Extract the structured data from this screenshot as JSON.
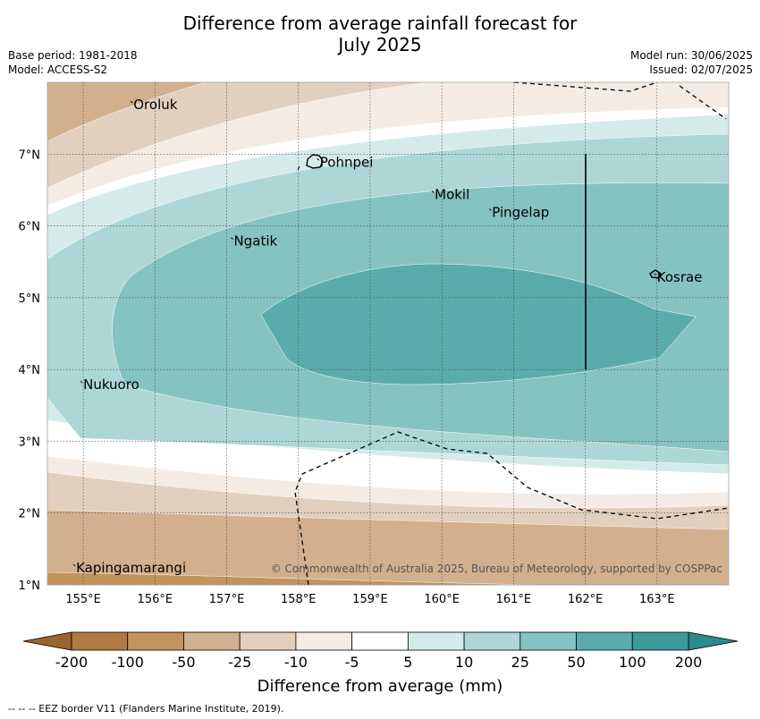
{
  "title_line1": "Difference from average rainfall forecast for",
  "title_line2": "July 2025",
  "meta": {
    "base_period": "Base period: 1981-2018",
    "model": "Model: ACCESS-S2",
    "model_run": "Model run: 30/06/2025",
    "issued": "Issued: 02/07/2025"
  },
  "map": {
    "lon_range": [
      154.5,
      164
    ],
    "lat_range": [
      1,
      8
    ],
    "lon_ticks": [
      "155°E",
      "156°E",
      "157°E",
      "158°E",
      "159°E",
      "160°E",
      "161°E",
      "162°E",
      "163°E"
    ],
    "lat_ticks": [
      "1°N",
      "2°N",
      "3°N",
      "4°N",
      "5°N",
      "6°N",
      "7°N"
    ],
    "places": [
      {
        "name": "Oroluk",
        "lon": 155.7,
        "lat": 7.7
      },
      {
        "name": "Pohnpei",
        "lon": 158.3,
        "lat": 6.9
      },
      {
        "name": "Mokil",
        "lon": 159.9,
        "lat": 6.45
      },
      {
        "name": "Pingelap",
        "lon": 160.7,
        "lat": 6.2
      },
      {
        "name": "Ngatik",
        "lon": 157.1,
        "lat": 5.8
      },
      {
        "name": "Kosrae",
        "lon": 163.0,
        "lat": 5.3
      },
      {
        "name": "Nukuoro",
        "lon": 155.0,
        "lat": 3.8
      },
      {
        "name": "Kapingamarangi",
        "lon": 154.9,
        "lat": 1.25
      }
    ],
    "copyright": "© Commonwealth of Australia 2025, Bureau of Meteorology, supported by COSPPac"
  },
  "colorbar": {
    "labels": [
      "-200",
      "-100",
      "-50",
      "-25",
      "-10",
      "-5",
      "5",
      "10",
      "25",
      "50",
      "100",
      "200"
    ],
    "colors": [
      "#b07a42",
      "#c3935e",
      "#d2b08e",
      "#e3cfbd",
      "#f4ebe4",
      "#ffffff",
      "#d5ebe9",
      "#add7d6",
      "#85c3c2",
      "#5aacac",
      "#3c9b9b"
    ],
    "under_color": "#9a6432",
    "over_color": "#2d8a8a",
    "label": "Difference from average (mm)"
  },
  "footer": "--  --  -- EEZ border V11 (Flanders Marine Institute, 2019)."
}
